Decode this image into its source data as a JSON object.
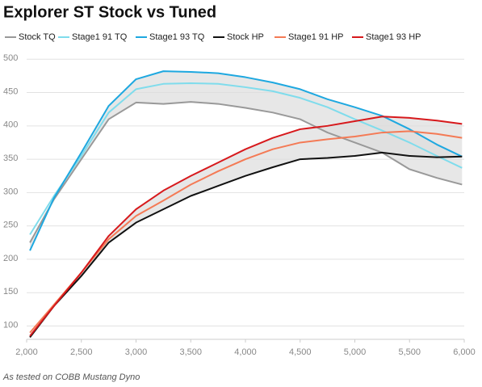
{
  "chart_data": {
    "type": "line",
    "title": "Explorer ST Stock vs Tuned",
    "note": "As tested on COBB Mustang Dyno",
    "x": [
      2030,
      2250,
      2500,
      2750,
      3000,
      3250,
      3500,
      3750,
      4000,
      4250,
      4500,
      4750,
      5000,
      5250,
      5500,
      5750,
      5980
    ],
    "series": [
      {
        "name": "Stock TQ",
        "color": "#999999",
        "values": [
          225,
          290,
          350,
          410,
          435,
          433,
          436,
          433,
          427,
          420,
          410,
          390,
          375,
          360,
          335,
          322,
          312
        ]
      },
      {
        "name": "Stage1 91 TQ",
        "color": "#7fdcec",
        "values": [
          237,
          295,
          355,
          420,
          455,
          463,
          464,
          463,
          458,
          452,
          442,
          428,
          410,
          393,
          375,
          355,
          337
        ]
      },
      {
        "name": "Stage1 93 TQ",
        "color": "#1ea8e0",
        "values": [
          213,
          292,
          360,
          430,
          470,
          482,
          481,
          479,
          473,
          465,
          455,
          440,
          428,
          415,
          395,
          372,
          354
        ]
      },
      {
        "name": "Stock HP",
        "color": "#111111",
        "values": [
          83,
          130,
          175,
          225,
          255,
          275,
          295,
          310,
          325,
          338,
          350,
          352,
          355,
          360,
          355,
          353,
          354
        ]
      },
      {
        "name": "Stage1 91 HP",
        "color": "#f47a55",
        "values": [
          90,
          132,
          180,
          230,
          265,
          288,
          312,
          332,
          350,
          365,
          375,
          380,
          384,
          390,
          392,
          388,
          382
        ]
      },
      {
        "name": "Stage1 93 HP",
        "color": "#d7191c",
        "values": [
          85,
          130,
          180,
          235,
          275,
          303,
          325,
          345,
          365,
          382,
          395,
          400,
          407,
          414,
          412,
          408,
          403
        ]
      }
    ],
    "xlim": [
      2000,
      6000
    ],
    "xticks": [
      {
        "value": 2000,
        "label": "2,000"
      },
      {
        "value": 2500,
        "label": "2,500"
      },
      {
        "value": 3000,
        "label": "3,000"
      },
      {
        "value": 3500,
        "label": "3,500"
      },
      {
        "value": 4000,
        "label": "4,000"
      },
      {
        "value": 4500,
        "label": "4,500"
      },
      {
        "value": 5000,
        "label": "5,000"
      },
      {
        "value": 5500,
        "label": "5,500"
      },
      {
        "value": 6000,
        "label": "6,000"
      }
    ],
    "ylim": [
      80,
      510
    ],
    "yticks": [
      100,
      150,
      200,
      250,
      300,
      350,
      400,
      450,
      500
    ],
    "grid": true,
    "legend": "top"
  }
}
